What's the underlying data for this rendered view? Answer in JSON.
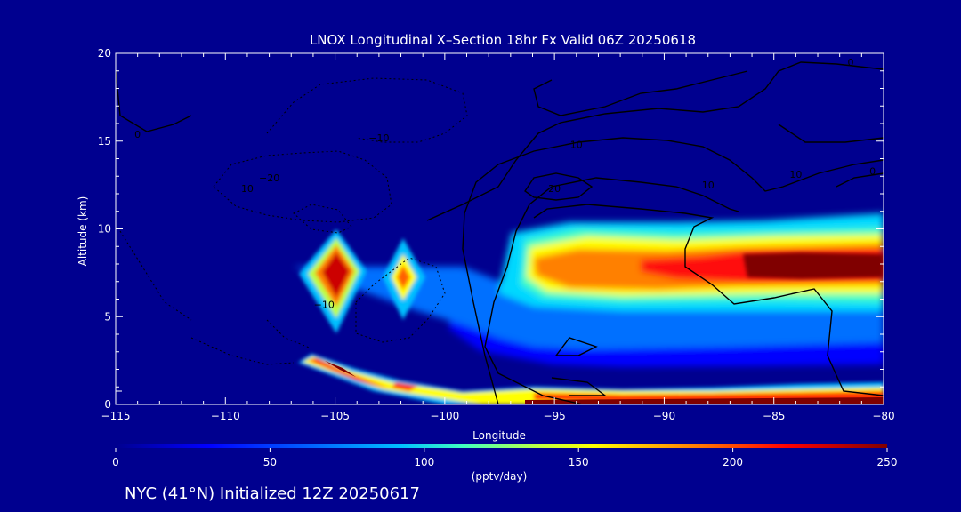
{
  "chart_data": {
    "type": "heatmap",
    "title": "LNOX Longitudinal X–Section 18hr  Fx Valid 06Z 20250618",
    "xlabel": "Longitude",
    "ylabel": "Altitude (km)",
    "xlim": [
      -115,
      -80
    ],
    "ylim": [
      0,
      20
    ],
    "x_ticks": [
      -115,
      -110,
      -105,
      -100,
      -95,
      -90,
      -85,
      -80
    ],
    "x_tick_labels": [
      "−115",
      "−110",
      "−105",
      "−100",
      "−95",
      "−90",
      "−85",
      "−80"
    ],
    "y_ticks": [
      0,
      5,
      10,
      15,
      20
    ],
    "y_tick_labels": [
      "0",
      "5",
      "10",
      "15",
      "20"
    ],
    "colorbar": {
      "label": "(pptv/day)",
      "range": [
        0,
        250
      ],
      "ticks": [
        0,
        50,
        100,
        150,
        200,
        250
      ],
      "tick_labels": [
        "0",
        "50",
        "100",
        "150",
        "200",
        "250"
      ],
      "colors": [
        "#00008f",
        "#0000ff",
        "#0080ff",
        "#00ffff",
        "#80ff80",
        "#ffff00",
        "#ff8000",
        "#ff0000",
        "#800000"
      ]
    },
    "features": [
      {
        "lon_range": [
          -96,
          -80
        ],
        "alt_range": [
          6.5,
          9.5
        ],
        "peak": 250,
        "desc": "upper band"
      },
      {
        "lon_range": [
          -106.5,
          -103.5
        ],
        "alt_range": [
          6,
          9.5
        ],
        "peak": 250,
        "desc": "cell"
      },
      {
        "lon_range": [
          -103,
          -101
        ],
        "alt_range": [
          6.3,
          8.3
        ],
        "peak": 200,
        "desc": "cell"
      },
      {
        "lon_range": [
          -106,
          -80
        ],
        "alt_range": [
          0,
          2.5
        ],
        "peak": 250,
        "desc": "near-surface layer"
      }
    ],
    "contour_labels": [
      {
        "text": "10",
        "lon": -94,
        "alt": 14.6
      },
      {
        "text": "20",
        "lon": -95,
        "alt": 12.1
      },
      {
        "text": "10",
        "lon": -88,
        "alt": 12.3
      },
      {
        "text": "10",
        "lon": -84,
        "alt": 12.9
      },
      {
        "text": "10",
        "lon": -109,
        "alt": 12.1
      },
      {
        "text": "−10",
        "lon": -103,
        "alt": 15
      },
      {
        "text": "−20",
        "lon": -108,
        "alt": 12.7
      },
      {
        "text": "−10",
        "lon": -105.5,
        "alt": 5.5
      },
      {
        "text": "0",
        "lon": -114,
        "alt": 15.2
      },
      {
        "text": "0",
        "lon": -80.5,
        "alt": 13.1
      },
      {
        "text": "0",
        "lon": -81.5,
        "alt": 19.3
      }
    ]
  },
  "footer": "NYC (41°N) Initialized 12Z 20250617"
}
